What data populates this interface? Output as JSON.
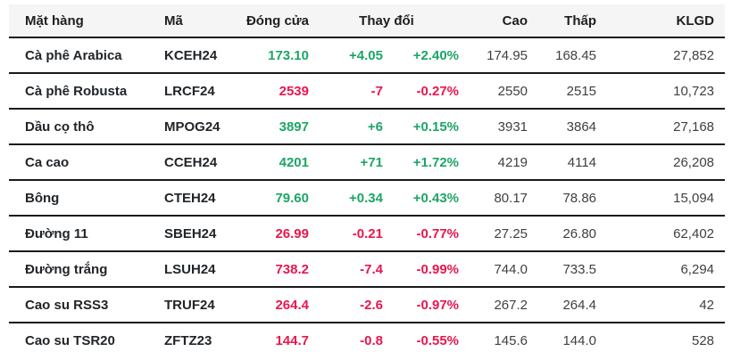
{
  "table": {
    "header": {
      "item": "Mặt hàng",
      "code": "Mã",
      "close": "Đóng cửa",
      "change": "Thay đổi",
      "high": "Cao",
      "low": "Thấp",
      "volume": "KLGD"
    },
    "rows": [
      {
        "item": "Cà phê Arabica",
        "code": "KCEH24",
        "close": "173.10",
        "change": "+4.05",
        "change_pct": "+2.40%",
        "high": "174.95",
        "low": "168.45",
        "volume": "27,852",
        "direction": "up"
      },
      {
        "item": "Cà phê Robusta",
        "code": "LRCF24",
        "close": "2539",
        "change": "-7",
        "change_pct": "-0.27%",
        "high": "2550",
        "low": "2515",
        "volume": "10,723",
        "direction": "down"
      },
      {
        "item": "Dầu cọ thô",
        "code": "MPOG24",
        "close": "3897",
        "change": "+6",
        "change_pct": "+0.15%",
        "high": "3931",
        "low": "3864",
        "volume": "27,168",
        "direction": "up"
      },
      {
        "item": "Ca cao",
        "code": "CCEH24",
        "close": "4201",
        "change": "+71",
        "change_pct": "+1.72%",
        "high": "4219",
        "low": "4114",
        "volume": "26,208",
        "direction": "up"
      },
      {
        "item": "Bông",
        "code": "CTEH24",
        "close": "79.60",
        "change": "+0.34",
        "change_pct": "+0.43%",
        "high": "80.17",
        "low": "78.86",
        "volume": "15,094",
        "direction": "up"
      },
      {
        "item": "Đường 11",
        "code": "SBEH24",
        "close": "26.99",
        "change": "-0.21",
        "change_pct": "-0.77%",
        "high": "27.25",
        "low": "26.80",
        "volume": "62,402",
        "direction": "down"
      },
      {
        "item": "Đường trắng",
        "code": "LSUH24",
        "close": "738.2",
        "change": "-7.4",
        "change_pct": "-0.99%",
        "high": "744.0",
        "low": "733.5",
        "volume": "6,294",
        "direction": "down"
      },
      {
        "item": "Cao su RSS3",
        "code": "TRUF24",
        "close": "264.4",
        "change": "-2.6",
        "change_pct": "-0.97%",
        "high": "267.2",
        "low": "264.4",
        "volume": "42",
        "direction": "down"
      },
      {
        "item": "Cao su TSR20",
        "code": "ZFTZ23",
        "close": "144.7",
        "change": "-0.8",
        "change_pct": "-0.55%",
        "high": "145.6",
        "low": "144.0",
        "volume": "528",
        "direction": "down"
      }
    ]
  },
  "colors": {
    "up": "#1ca566",
    "down": "#e9164d",
    "header_bg": "#f5f5f5",
    "row_border": "#1b1b1b"
  },
  "chart_data": {
    "type": "table",
    "title": "",
    "columns": [
      "Mặt hàng",
      "Mã",
      "Đóng cửa",
      "Thay đổi",
      "Thay đổi %",
      "Cao",
      "Thấp",
      "KLGD"
    ],
    "rows": [
      [
        "Cà phê Arabica",
        "KCEH24",
        173.1,
        4.05,
        "+2.40%",
        174.95,
        168.45,
        27852
      ],
      [
        "Cà phê Robusta",
        "LRCF24",
        2539,
        -7,
        "-0.27%",
        2550,
        2515,
        10723
      ],
      [
        "Dầu cọ thô",
        "MPOG24",
        3897,
        6,
        "+0.15%",
        3931,
        3864,
        27168
      ],
      [
        "Ca cao",
        "CCEH24",
        4201,
        71,
        "+1.72%",
        4219,
        4114,
        26208
      ],
      [
        "Bông",
        "CTEH24",
        79.6,
        0.34,
        "+0.43%",
        80.17,
        78.86,
        15094
      ],
      [
        "Đường 11",
        "SBEH24",
        26.99,
        -0.21,
        "-0.77%",
        27.25,
        26.8,
        62402
      ],
      [
        "Đường trắng",
        "LSUH24",
        738.2,
        -7.4,
        "-0.99%",
        744.0,
        733.5,
        6294
      ],
      [
        "Cao su RSS3",
        "TRUF24",
        264.4,
        -2.6,
        "-0.97%",
        267.2,
        264.4,
        42
      ],
      [
        "Cao su TSR20",
        "ZFTZ23",
        144.7,
        -0.8,
        "-0.55%",
        145.6,
        144.0,
        528
      ]
    ]
  }
}
